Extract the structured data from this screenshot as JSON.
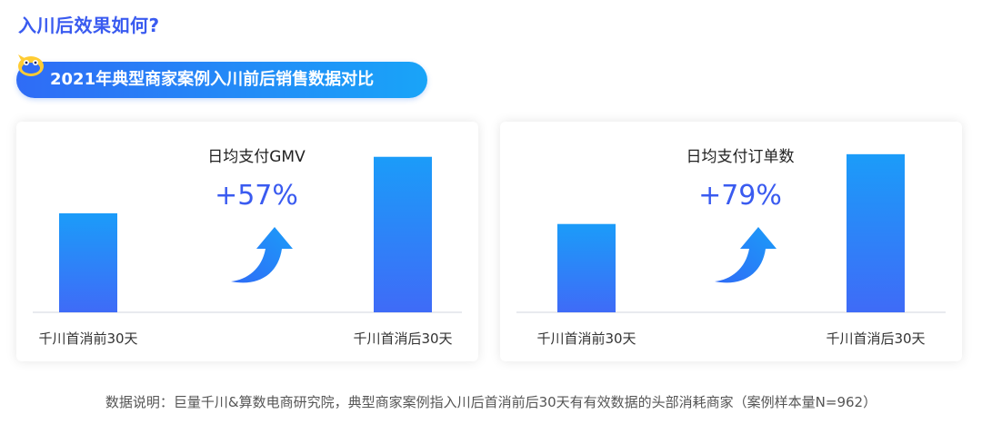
{
  "headline": "入川后效果如何?",
  "section_title": "2021年典型商家案例入川前后销售数据对比",
  "colors": {
    "accent": "#3a5bf0",
    "bar_top": "#1b9cf9",
    "bar_bottom": "#3f6bf7"
  },
  "chart_data": [
    {
      "type": "bar",
      "title": "日均支付GMV",
      "categories": [
        "千川首消前30天",
        "千川首消后30天"
      ],
      "values": [
        100,
        157
      ],
      "ylim": [
        0,
        165
      ],
      "annotation": "+57%"
    },
    {
      "type": "bar",
      "title": "日均支付订单数",
      "categories": [
        "千川首消前30天",
        "千川首消后30天"
      ],
      "values": [
        100,
        179
      ],
      "ylim": [
        0,
        185
      ],
      "annotation": "+79%"
    }
  ],
  "footnote": "数据说明：巨量千川&算数电商研究院，典型商家案例指入川后首消前后30天有有效数据的头部消耗商家（案例样本量N=962）"
}
